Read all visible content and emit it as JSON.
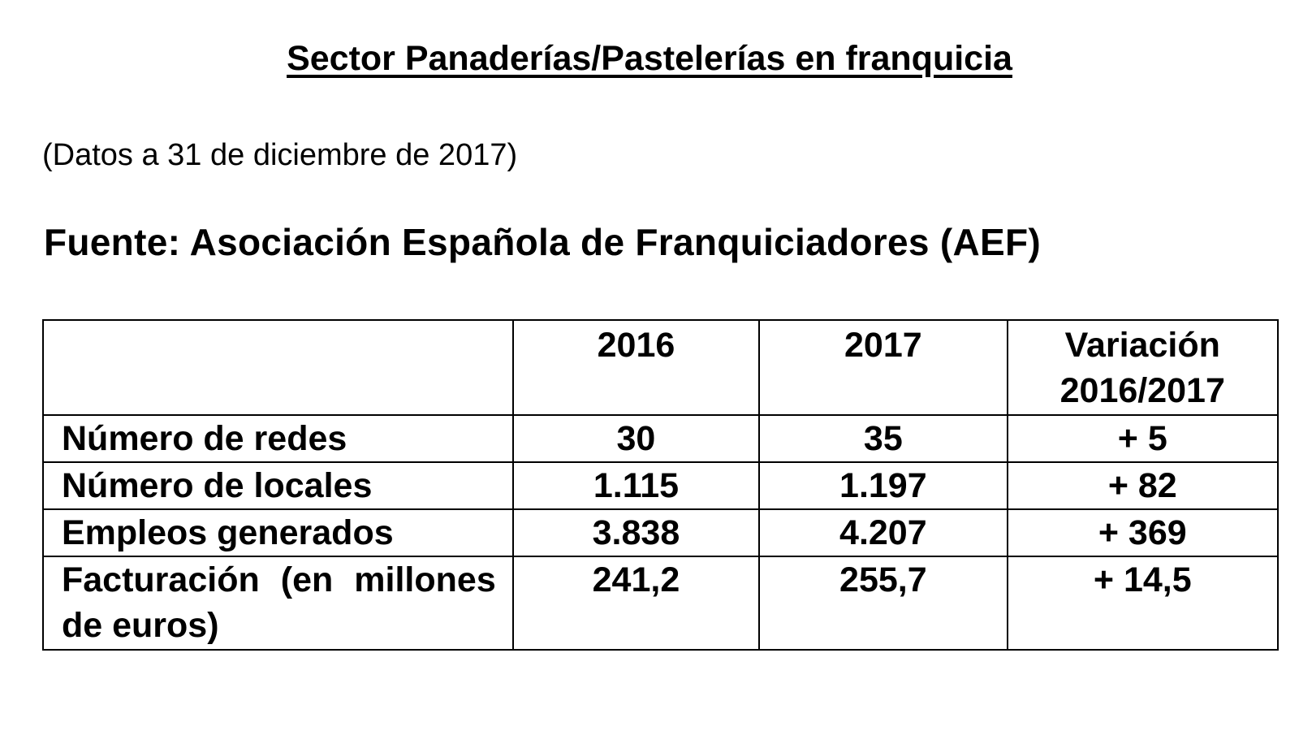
{
  "document": {
    "title": "Sector Panaderías/Pastelerías en franquicia",
    "date_note": "(Datos a 31 de diciembre de 2017)",
    "source": "Fuente: Asociación Española de Franquiciadores (AEF)"
  },
  "table": {
    "headers": [
      "",
      "2016",
      "2017",
      "Variación 2016/2017"
    ],
    "rows": [
      {
        "label": "Número de redes",
        "y2016": "30",
        "y2017": "35",
        "variation": "+ 5"
      },
      {
        "label": "Número de locales",
        "y2016": "1.115",
        "y2017": "1.197",
        "variation": "+ 82"
      },
      {
        "label": "Empleos generados",
        "y2016": "3.838",
        "y2017": "4.207",
        "variation": "+ 369"
      },
      {
        "label": "Facturación (en millones de euros)",
        "y2016": "241,2",
        "y2017": "255,7",
        "variation": "+ 14,5"
      }
    ]
  }
}
